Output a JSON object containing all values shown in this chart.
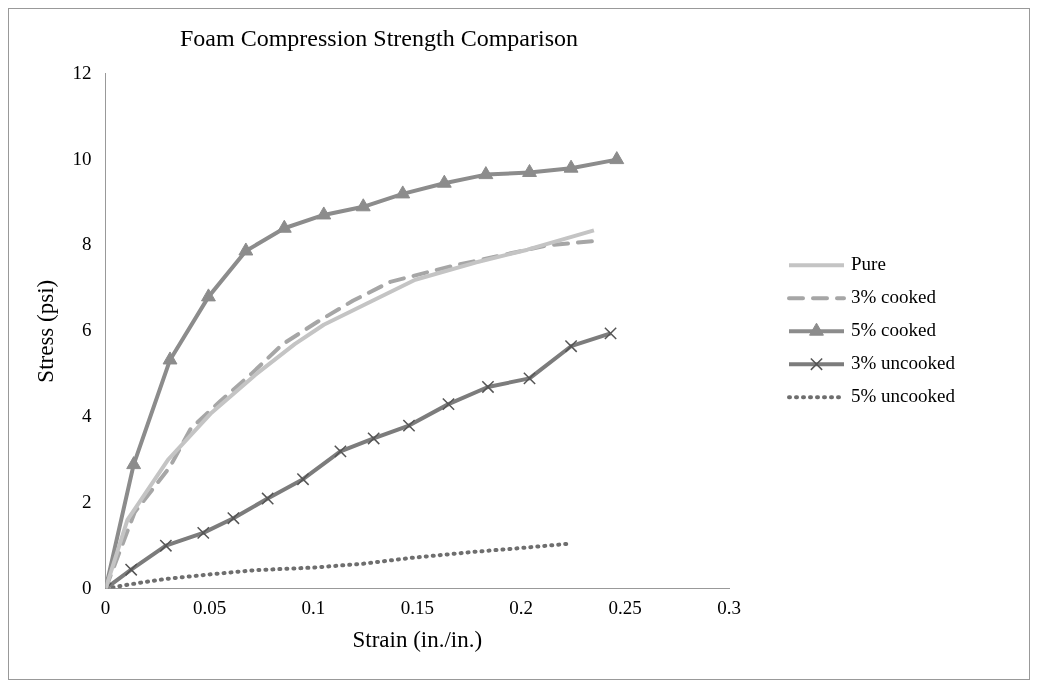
{
  "chart_data": {
    "type": "line",
    "title": "Foam Compression Strength Comparison",
    "xlabel": "Strain (in./in.)",
    "ylabel": "Stress (psi)",
    "xlim": [
      0,
      0.3
    ],
    "xticks": [
      0,
      0.05,
      0.1,
      0.15,
      0.2,
      0.25,
      0.3
    ],
    "ylim": [
      0,
      12
    ],
    "yticks": [
      0,
      2,
      4,
      6,
      8,
      10,
      12
    ],
    "grid": false,
    "legend": "right",
    "series": [
      {
        "name": "Pure",
        "color": "#c4c4c4",
        "line_style": "solid",
        "marker": "none",
        "x": [
          0,
          0.0105,
          0.03,
          0.051,
          0.072,
          0.091,
          0.105,
          0.126,
          0.149,
          0.178,
          0.203,
          0.235
        ],
        "values": [
          0,
          1.6,
          3.0,
          4.1,
          4.98,
          5.7,
          6.15,
          6.65,
          7.2,
          7.6,
          7.9,
          8.35
        ]
      },
      {
        "name": "3% cooked",
        "color": "#a6a6a6",
        "line_style": "dashed",
        "marker": "none",
        "x": [
          0,
          0.014,
          0.031,
          0.041,
          0.055,
          0.07,
          0.085,
          0.102,
          0.119,
          0.137,
          0.165,
          0.2125,
          0.235
        ],
        "values": [
          0,
          1.78,
          2.84,
          3.73,
          4.36,
          5.0,
          5.69,
          6.22,
          6.71,
          7.15,
          7.5,
          8.0,
          8.1
        ]
      },
      {
        "name": "5% cooked",
        "color": "#8c8c8c",
        "line_style": "solid",
        "marker": "triangle",
        "x": [
          0,
          0.0135,
          0.031,
          0.0495,
          0.0675,
          0.086,
          0.105,
          0.124,
          0.143,
          0.163,
          0.183,
          0.204,
          0.224,
          0.246
        ],
        "values": [
          0,
          2.89,
          5.33,
          6.8,
          7.87,
          8.4,
          8.71,
          8.9,
          9.2,
          9.45,
          9.65,
          9.7,
          9.8,
          10
        ]
      },
      {
        "name": "3% uncooked",
        "color": "#7c7c7c",
        "line_style": "solid",
        "marker": "cross",
        "x": [
          0,
          0.0123,
          0.029,
          0.047,
          0.0615,
          0.078,
          0.095,
          0.113,
          0.129,
          0.146,
          0.165,
          0.184,
          0.204,
          0.224,
          0.243
        ],
        "values": [
          0,
          0.44,
          1.0,
          1.3,
          1.64,
          2.1,
          2.55,
          3.2,
          3.5,
          3.8,
          4.3,
          4.7,
          4.9,
          5.65,
          5.95
        ]
      },
      {
        "name": "5% uncooked",
        "color": "#6e6e6e",
        "line_style": "dotted",
        "marker": "none",
        "x": [
          0,
          0.0105,
          0.028,
          0.05,
          0.072,
          0.1,
          0.124,
          0.146,
          0.178,
          0.201,
          0.224
        ],
        "values": [
          0,
          0.09,
          0.22,
          0.33,
          0.43,
          0.49,
          0.58,
          0.71,
          0.86,
          0.95,
          1.05
        ]
      }
    ]
  }
}
